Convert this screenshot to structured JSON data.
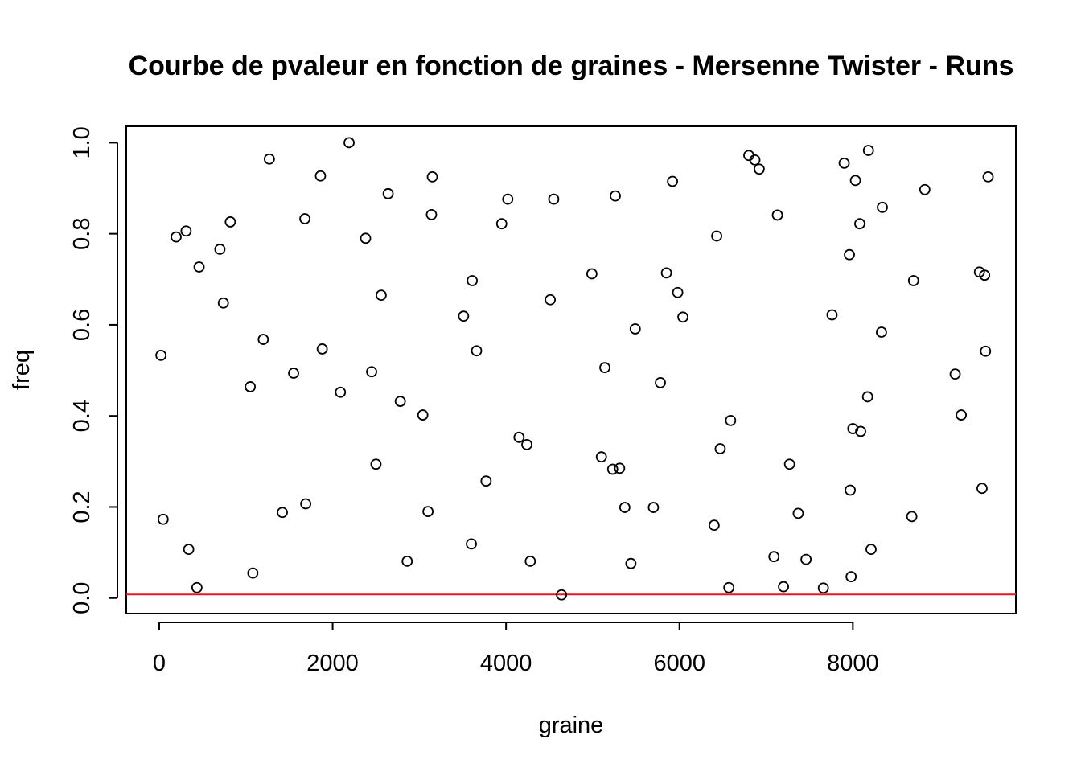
{
  "chart_data": {
    "type": "scatter",
    "title": "Courbe de pvaleur en fonction de graines - Mersenne Twister - Runs",
    "xlabel": "graine",
    "ylabel": "freq",
    "xlim": [
      -380,
      9880
    ],
    "ylim": [
      -0.034,
      1.036
    ],
    "xticks": [
      0,
      2000,
      4000,
      6000,
      8000
    ],
    "xtick_labels": [
      "0",
      "2000",
      "4000",
      "6000",
      "8000"
    ],
    "yticks": [
      0.0,
      0.2,
      0.4,
      0.6,
      0.8,
      1.0
    ],
    "ytick_labels": [
      "0.0",
      "0.2",
      "0.4",
      "0.6",
      "0.8",
      "1.0"
    ],
    "grid": false,
    "legend": "none",
    "threshold_line": {
      "y": 0.008,
      "color": "#e31a1c"
    },
    "point_color": "#000000",
    "points": [
      [
        20,
        0.533
      ],
      [
        45,
        0.173
      ],
      [
        195,
        0.793
      ],
      [
        310,
        0.806
      ],
      [
        340,
        0.107
      ],
      [
        435,
        0.023
      ],
      [
        460,
        0.727
      ],
      [
        700,
        0.766
      ],
      [
        740,
        0.648
      ],
      [
        820,
        0.826
      ],
      [
        1050,
        0.464
      ],
      [
        1080,
        0.055
      ],
      [
        1200,
        0.568
      ],
      [
        1270,
        0.964
      ],
      [
        1420,
        0.188
      ],
      [
        1550,
        0.494
      ],
      [
        1680,
        0.833
      ],
      [
        1690,
        0.207
      ],
      [
        1860,
        0.927
      ],
      [
        1880,
        0.547
      ],
      [
        2090,
        0.452
      ],
      [
        2190,
        1.0
      ],
      [
        2380,
        0.79
      ],
      [
        2450,
        0.497
      ],
      [
        2500,
        0.294
      ],
      [
        2560,
        0.665
      ],
      [
        2640,
        0.888
      ],
      [
        2780,
        0.432
      ],
      [
        2860,
        0.081
      ],
      [
        3040,
        0.402
      ],
      [
        3100,
        0.19
      ],
      [
        3140,
        0.842
      ],
      [
        3150,
        0.925
      ],
      [
        3510,
        0.619
      ],
      [
        3600,
        0.119
      ],
      [
        3610,
        0.697
      ],
      [
        3660,
        0.543
      ],
      [
        3770,
        0.257
      ],
      [
        3950,
        0.822
      ],
      [
        4020,
        0.876
      ],
      [
        4150,
        0.353
      ],
      [
        4240,
        0.337
      ],
      [
        4280,
        0.081
      ],
      [
        4510,
        0.655
      ],
      [
        4550,
        0.876
      ],
      [
        4640,
        0.007
      ],
      [
        4990,
        0.712
      ],
      [
        5100,
        0.31
      ],
      [
        5140,
        0.506
      ],
      [
        5230,
        0.283
      ],
      [
        5260,
        0.883
      ],
      [
        5310,
        0.285
      ],
      [
        5370,
        0.199
      ],
      [
        5440,
        0.076
      ],
      [
        5490,
        0.591
      ],
      [
        5700,
        0.199
      ],
      [
        5780,
        0.473
      ],
      [
        5850,
        0.714
      ],
      [
        5920,
        0.915
      ],
      [
        5980,
        0.671
      ],
      [
        6040,
        0.617
      ],
      [
        6400,
        0.16
      ],
      [
        6430,
        0.795
      ],
      [
        6470,
        0.328
      ],
      [
        6570,
        0.023
      ],
      [
        6590,
        0.39
      ],
      [
        6800,
        0.972
      ],
      [
        6870,
        0.962
      ],
      [
        6920,
        0.942
      ],
      [
        7090,
        0.091
      ],
      [
        7130,
        0.841
      ],
      [
        7200,
        0.025
      ],
      [
        7270,
        0.294
      ],
      [
        7370,
        0.186
      ],
      [
        7460,
        0.085
      ],
      [
        7660,
        0.022
      ],
      [
        7760,
        0.622
      ],
      [
        7900,
        0.955
      ],
      [
        7960,
        0.754
      ],
      [
        7970,
        0.237
      ],
      [
        7980,
        0.047
      ],
      [
        8000,
        0.372
      ],
      [
        8030,
        0.917
      ],
      [
        8080,
        0.822
      ],
      [
        8090,
        0.366
      ],
      [
        8170,
        0.442
      ],
      [
        8180,
        0.983
      ],
      [
        8210,
        0.107
      ],
      [
        8330,
        0.584
      ],
      [
        8340,
        0.858
      ],
      [
        8680,
        0.179
      ],
      [
        8700,
        0.697
      ],
      [
        8830,
        0.897
      ],
      [
        9180,
        0.492
      ],
      [
        9250,
        0.402
      ],
      [
        9460,
        0.716
      ],
      [
        9490,
        0.241
      ],
      [
        9520,
        0.709
      ],
      [
        9530,
        0.542
      ],
      [
        9560,
        0.925
      ]
    ]
  }
}
